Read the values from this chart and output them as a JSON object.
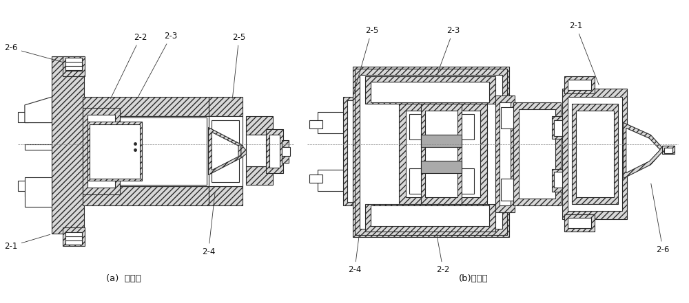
{
  "background_color": "#ffffff",
  "label_a": "(a)  反推式",
  "label_b": "(b)直推式",
  "line_color": "#2a2a2a",
  "hatch_color": "#555555",
  "fig_width": 10.0,
  "fig_height": 4.41,
  "hatch": "////",
  "lw": 0.8
}
